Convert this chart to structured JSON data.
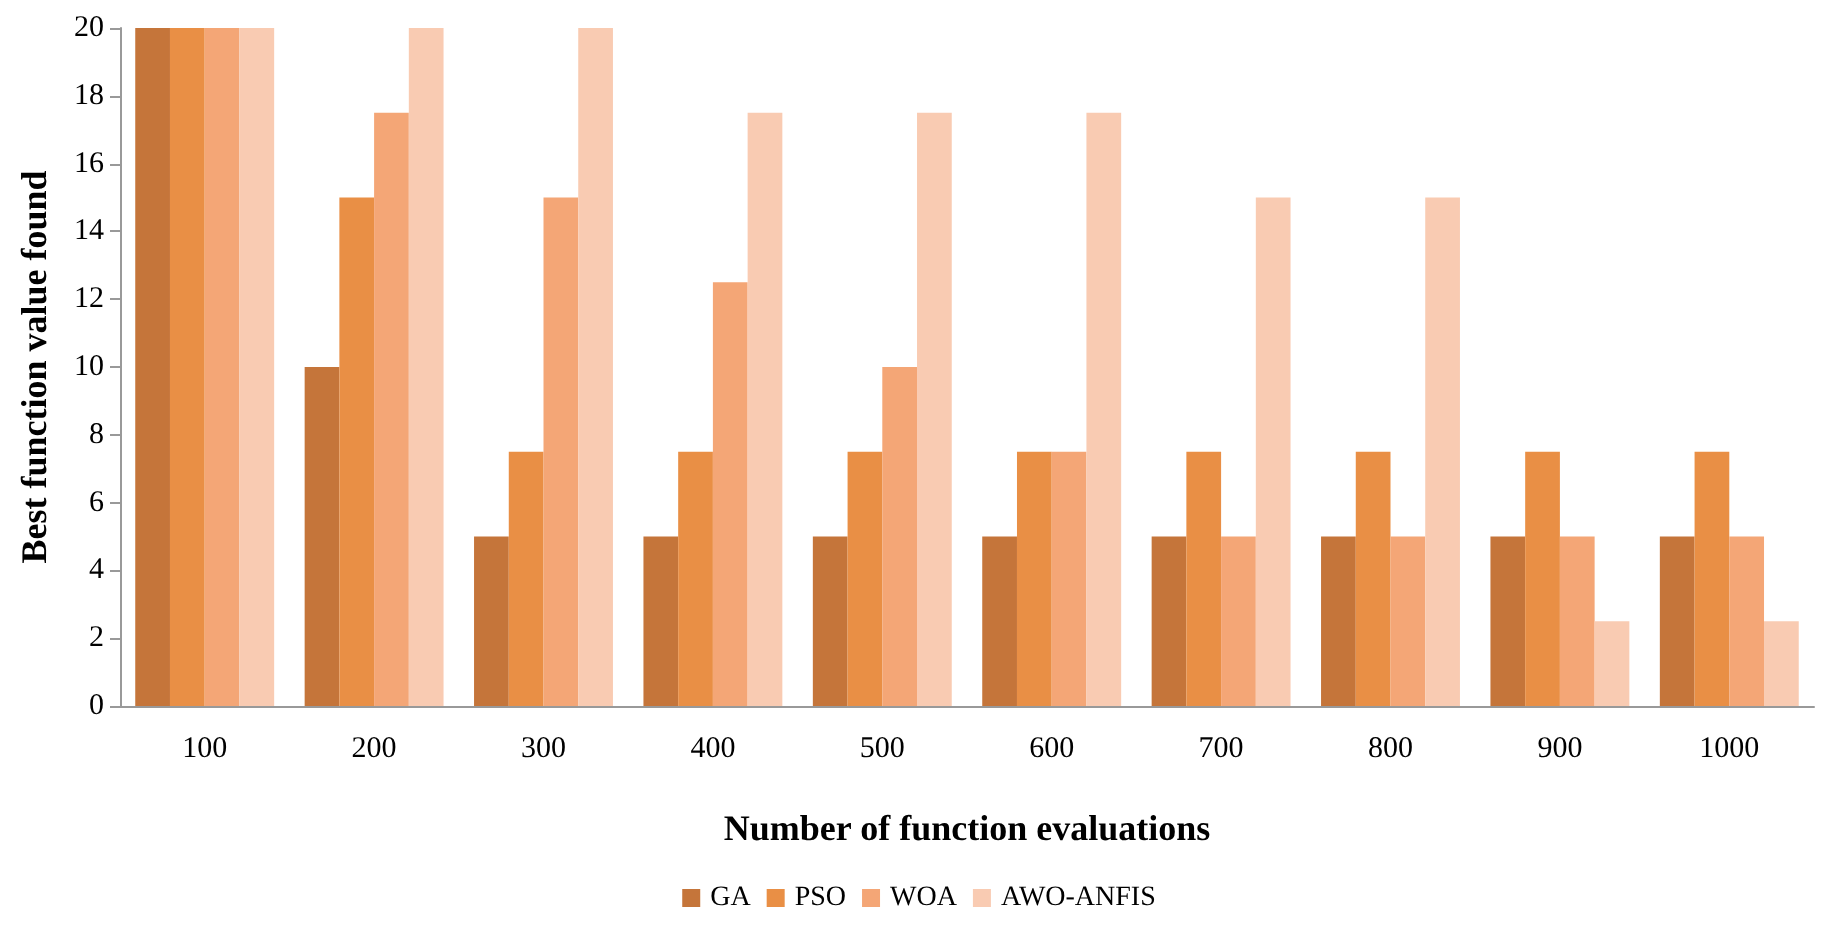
{
  "chart_data": {
    "type": "bar",
    "xlabel": "Number of function evaluations",
    "ylabel": "Best function value found",
    "categories": [
      "100",
      "200",
      "300",
      "400",
      "500",
      "600",
      "700",
      "800",
      "900",
      "1000"
    ],
    "series": [
      {
        "name": "GA",
        "color": "#c5753a",
        "values": [
          20,
          10,
          5,
          5,
          5,
          5,
          5,
          5,
          5,
          5
        ]
      },
      {
        "name": "PSO",
        "color": "#e98f45",
        "values": [
          20,
          15,
          7.5,
          7.5,
          7.5,
          7.5,
          7.5,
          7.5,
          7.5,
          7.5
        ]
      },
      {
        "name": "WOA",
        "color": "#f4a676",
        "values": [
          20,
          17.5,
          15,
          12.5,
          10,
          7.5,
          5,
          5,
          5,
          5
        ]
      },
      {
        "name": "AWO-ANFIS",
        "color": "#f9cbb2",
        "values": [
          20,
          20,
          20,
          17.5,
          17.5,
          17.5,
          15,
          15,
          2.5,
          2.5
        ]
      }
    ],
    "ylim": [
      0,
      20
    ],
    "yticks": [
      0,
      2,
      4,
      6,
      8,
      10,
      12,
      14,
      16,
      18,
      20
    ],
    "grid": false,
    "legend": "bottom"
  }
}
